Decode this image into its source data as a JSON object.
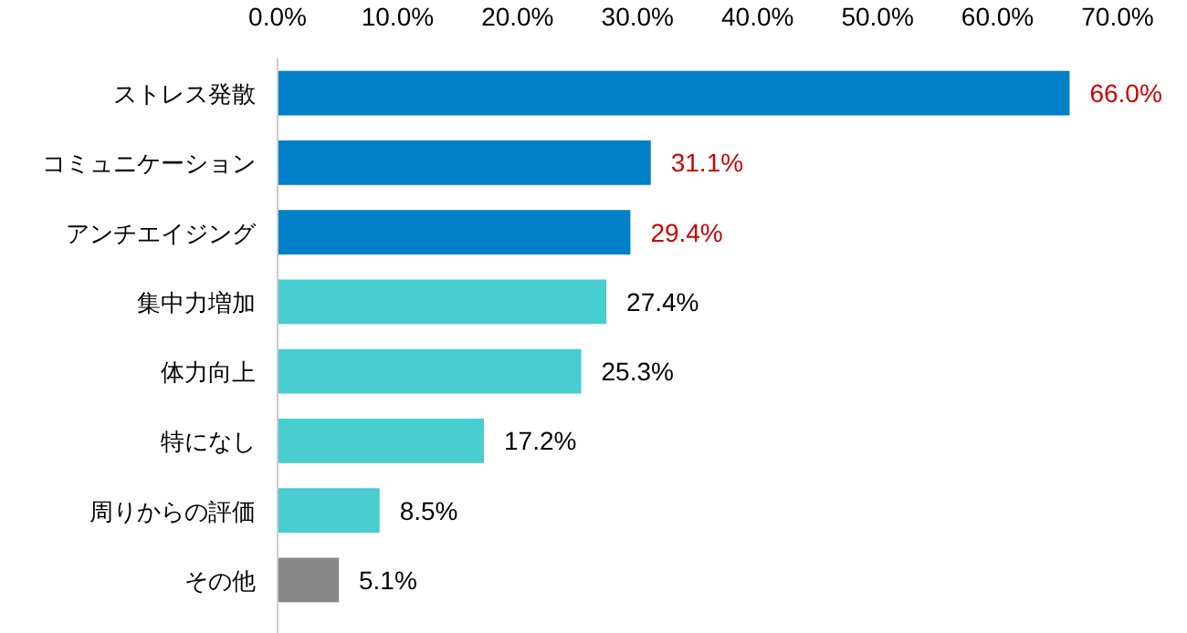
{
  "chart_data": {
    "type": "bar",
    "orientation": "horizontal",
    "categories": [
      "ストレス発散",
      "コミュニケーション",
      "アンチエイジング",
      "集中力増加",
      "体力向上",
      "特になし",
      "周りからの評価",
      "その他"
    ],
    "values": [
      66.0,
      31.1,
      29.4,
      27.4,
      25.3,
      17.2,
      8.5,
      5.1
    ],
    "colors": [
      "#0080c6",
      "#0080c6",
      "#0080c6",
      "#48cdd0",
      "#48cdd0",
      "#48cdd0",
      "#48cdd0",
      "#878787"
    ],
    "value_labels": [
      "66.0%",
      "31.1%",
      "29.4%",
      "27.4%",
      "25.3%",
      "17.2%",
      "8.5%",
      "5.1%"
    ],
    "xlim": [
      0,
      70
    ],
    "xticks": [
      {
        "value": 0,
        "label": "0.0%"
      },
      {
        "value": 10,
        "label": "10.0%"
      },
      {
        "value": 20,
        "label": "20.0%"
      },
      {
        "value": 30,
        "label": "30.0%"
      },
      {
        "value": 40,
        "label": "40.0%"
      },
      {
        "value": 50,
        "label": "50.0%"
      },
      {
        "value": 60,
        "label": "60.0%"
      },
      {
        "value": 70,
        "label": "70.0%"
      }
    ],
    "grid": false
  }
}
